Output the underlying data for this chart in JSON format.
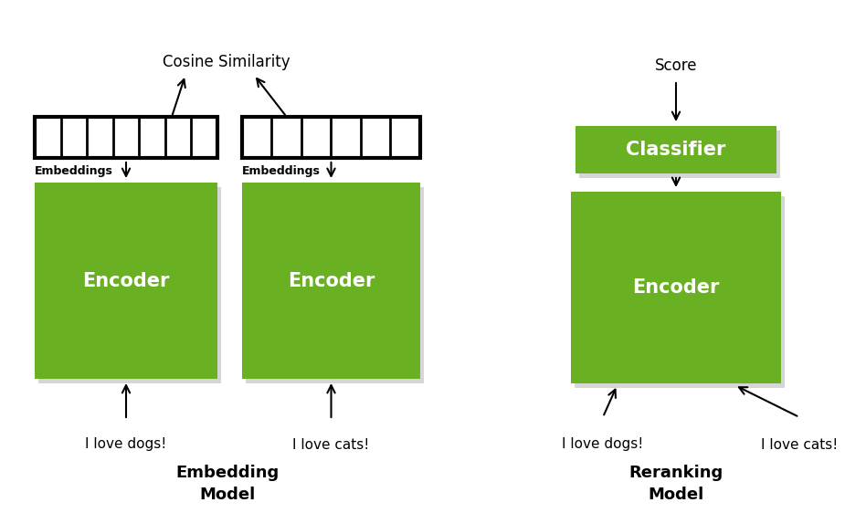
{
  "bg_color": "#ffffff",
  "green_color": "#6ab023",
  "black": "#000000",
  "white": "#ffffff",
  "gray_shadow": "#bbbbbb",
  "cosine_text": "Cosine Similarity",
  "score_text": "Score",
  "embeddings_label": "Embeddings",
  "embedding_model_label": "Embedding\nModel",
  "reranking_model_label": "Reranking\nModel",
  "text_dogs": "I love dogs!",
  "text_cats": "I love cats!",
  "font_size_encoder": 15,
  "font_size_label": 11,
  "font_size_small": 9,
  "font_size_model": 13,
  "font_size_cosine": 12,
  "emb1_cells": 7,
  "emb2_cells": 6
}
